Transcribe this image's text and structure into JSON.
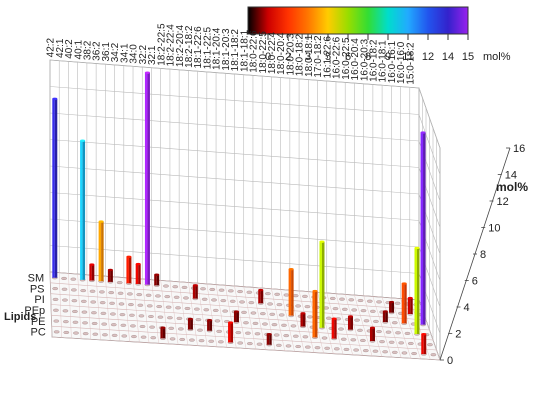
{
  "chart_data": {
    "type": "bar3d",
    "title": "",
    "zlabel": "mol%",
    "ylabel": "Lipids",
    "zlim": [
      0,
      16
    ],
    "zticks": [
      0,
      2,
      4,
      6,
      8,
      10,
      12,
      14,
      16
    ],
    "grid": true,
    "lipid_classes": [
      "SM",
      "PS",
      "PI",
      "PEp",
      "PE",
      "PC"
    ],
    "species": [
      "42:2",
      "42:1",
      "40:2",
      "40:1",
      "38:2",
      "36:2",
      "36:1",
      "34:2",
      "34:1",
      "34:0",
      "32:2",
      "32:1",
      "18:2-22:5",
      "18:2-22:4",
      "18:2-20:4",
      "18:2-18:2",
      "18:1-22:6",
      "18:1-22:5",
      "18:1-20:4",
      "18:1-20:3",
      "18:1-18:2",
      "18:1-18:1",
      "18:0-22:6",
      "18:0-22:5",
      "18:0-22:4",
      "18:0-20:4",
      "18:0-20:3",
      "18:0-18:2",
      "18:0-18:1",
      "17:0-18:2",
      "16:1-22:6",
      "16:0-22:6",
      "16:0-22:5",
      "16:0-20:4",
      "16:0-20:3",
      "16:0-18:2",
      "16:0-18:1",
      "16:0-16:1",
      "16:0-16:0",
      "15:0-18:2"
    ],
    "colorbar": {
      "label": "mol%",
      "tick_labels": [
        "0",
        "2",
        "3",
        "5",
        "6",
        "8",
        "9",
        "11",
        "12",
        "14",
        "15"
      ],
      "colors": [
        "#000000",
        "#cc0000",
        "#ff3300",
        "#ff7700",
        "#ffcc00",
        "#99dd00",
        "#33dd33",
        "#00ddcc",
        "#22aaff",
        "#2255ee",
        "#3322cc",
        "#9922ee"
      ]
    },
    "bars": [
      {
        "lipid": "SM",
        "species": "42:2",
        "value": 13.5
      },
      {
        "lipid": "SM",
        "species": "40:1",
        "value": 10.5
      },
      {
        "lipid": "SM",
        "species": "36:2",
        "value": 4.5
      },
      {
        "lipid": "SM",
        "species": "34:1",
        "value": 2.0
      },
      {
        "lipid": "SM",
        "species": "34:0",
        "value": 1.5
      },
      {
        "lipid": "SM",
        "species": "32:1",
        "value": 0.8
      },
      {
        "lipid": "SM",
        "species": "38:2",
        "value": 1.2
      },
      {
        "lipid": "SM",
        "species": "36:1",
        "value": 0.9
      },
      {
        "lipid": "SM",
        "species": "32:2",
        "value": 16.0
      },
      {
        "lipid": "PS",
        "species": "18:0-22:6",
        "value": 1.0
      },
      {
        "lipid": "PS",
        "species": "16:0-16:0",
        "value": 1.2
      },
      {
        "lipid": "PS",
        "species": "16:0-18:1",
        "value": 0.8
      },
      {
        "lipid": "PS",
        "species": "18:2-18:2",
        "value": 1.0
      },
      {
        "lipid": "PI",
        "species": "18:0-20:4",
        "value": 3.5
      },
      {
        "lipid": "PI",
        "species": "16:0-16:1",
        "value": 3.0
      },
      {
        "lipid": "PI",
        "species": "15:0-18:2",
        "value": 14.5
      },
      {
        "lipid": "PI",
        "species": "16:0-18:2",
        "value": 0.8
      },
      {
        "lipid": "PEp",
        "species": "18:0-18:1",
        "value": 6.5
      },
      {
        "lipid": "PEp",
        "species": "16:0-16:0",
        "value": 6.5
      },
      {
        "lipid": "PEp",
        "species": "18:0-20:3",
        "value": 1.0
      },
      {
        "lipid": "PEp",
        "species": "18:1-20:3",
        "value": 0.8
      },
      {
        "lipid": "PEp",
        "species": "16:0-22:6",
        "value": 1.0
      },
      {
        "lipid": "PE",
        "species": "18:0-18:2",
        "value": 3.5
      },
      {
        "lipid": "PE",
        "species": "17:0-18:2",
        "value": 1.5
      },
      {
        "lipid": "PE",
        "species": "16:0-20:4",
        "value": 1.0
      },
      {
        "lipid": "PE",
        "species": "18:1-22:6",
        "value": 0.8
      },
      {
        "lipid": "PE",
        "species": "18:2-20:4",
        "value": 0.8
      },
      {
        "lipid": "PC",
        "species": "18:1-20:4",
        "value": 1.5
      },
      {
        "lipid": "PC",
        "species": "16:0-16:0",
        "value": 1.5
      },
      {
        "lipid": "PC",
        "species": "32:1",
        "value": 0.8
      },
      {
        "lipid": "PC",
        "species": "18:0-22:6",
        "value": 0.8
      }
    ]
  }
}
